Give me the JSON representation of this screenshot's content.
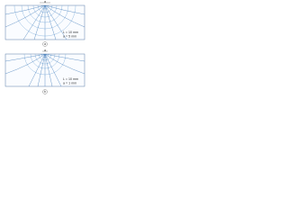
{
  "panels": [
    {
      "label": "a",
      "marker": "a",
      "params": [
        "L = 10 mm",
        "a = 5 mm"
      ]
    },
    {
      "label": "b",
      "marker": "a",
      "params": [
        "L = 10 mm",
        "a = 1 mm"
      ]
    }
  ]
}
